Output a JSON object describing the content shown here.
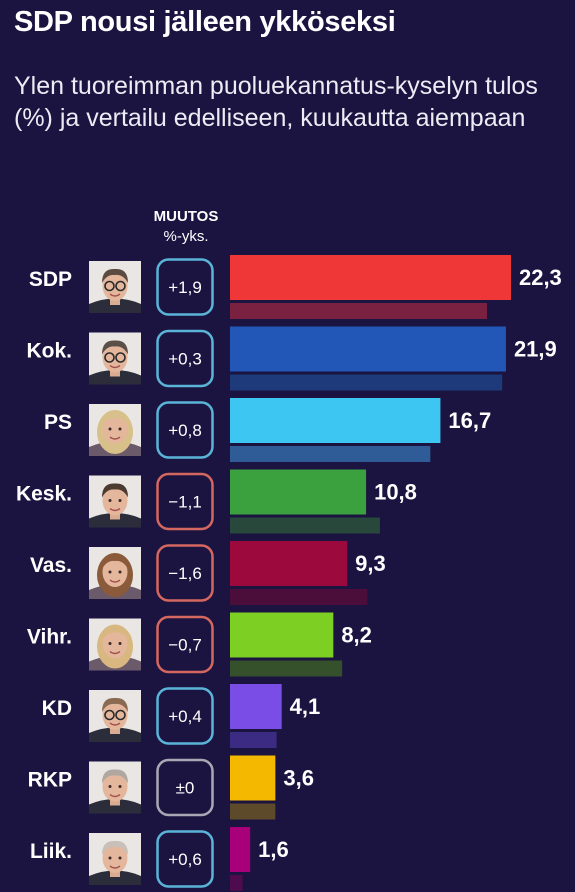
{
  "title": "SDP nousi jälleen ykköseksi",
  "subtitle": "Ylen tuoreimman puoluekannatus-kyselyn tulos (%) ja vertailu edelliseen, kuukautta aiempaan",
  "change_header": {
    "line1": "MUUTOS",
    "line2": "%-yks."
  },
  "colors": {
    "background": "#1b1440",
    "change_positive": "#5ab4d8",
    "change_negative": "#d4675f",
    "change_neutral": "#a8a8b4"
  },
  "chart_data": {
    "type": "bar",
    "orientation": "horizontal",
    "categories": [
      "SDP",
      "Kok.",
      "PS",
      "Kesk.",
      "Vas.",
      "Vihr.",
      "KD",
      "RKP",
      "Liik."
    ],
    "series": [
      {
        "name": "",
        "values": [
          22.3,
          21.9,
          16.7,
          10.8,
          9.3,
          8.2,
          4.1,
          3.6,
          1.6
        ]
      },
      {
        "name": "",
        "values": [
          20.4,
          21.6,
          15.9,
          11.9,
          10.9,
          8.9,
          3.7,
          3.6,
          1.0
        ]
      }
    ],
    "value_labels": [
      "22,3",
      "21,9",
      "16,7",
      "10,8",
      "9,3",
      "8,2",
      "4,1",
      "3,6",
      "1,6"
    ],
    "changes": [
      "+1,9",
      "+0,3",
      "+0,8",
      "−1,1",
      "−1,6",
      "−0,7",
      "+0,4",
      "±0",
      "+0,6"
    ],
    "change_direction": [
      "up",
      "up",
      "up",
      "down",
      "down",
      "down",
      "up",
      "neutral",
      "up"
    ],
    "bar_colors": [
      "#f03737",
      "#2257b8",
      "#3ec6f2",
      "#3aa13e",
      "#9c0a3d",
      "#7dd023",
      "#7a4ee6",
      "#f4b800",
      "#a8007a"
    ],
    "previous_colors": [
      "#7a2040",
      "#1e3a7a",
      "#2f5c96",
      "#27483a",
      "#4b0e3a",
      "#34512c",
      "#3c2b82",
      "#5c4a2a",
      "#4e0c4e"
    ],
    "portrait_icons": [
      "portrait-sdp-icon",
      "portrait-kok-icon",
      "portrait-ps-icon",
      "portrait-kesk-icon",
      "portrait-vas-icon",
      "portrait-vihr-icon",
      "portrait-kd-icon",
      "portrait-rkp-icon",
      "portrait-liik-icon"
    ],
    "xlim": [
      0,
      25
    ]
  }
}
